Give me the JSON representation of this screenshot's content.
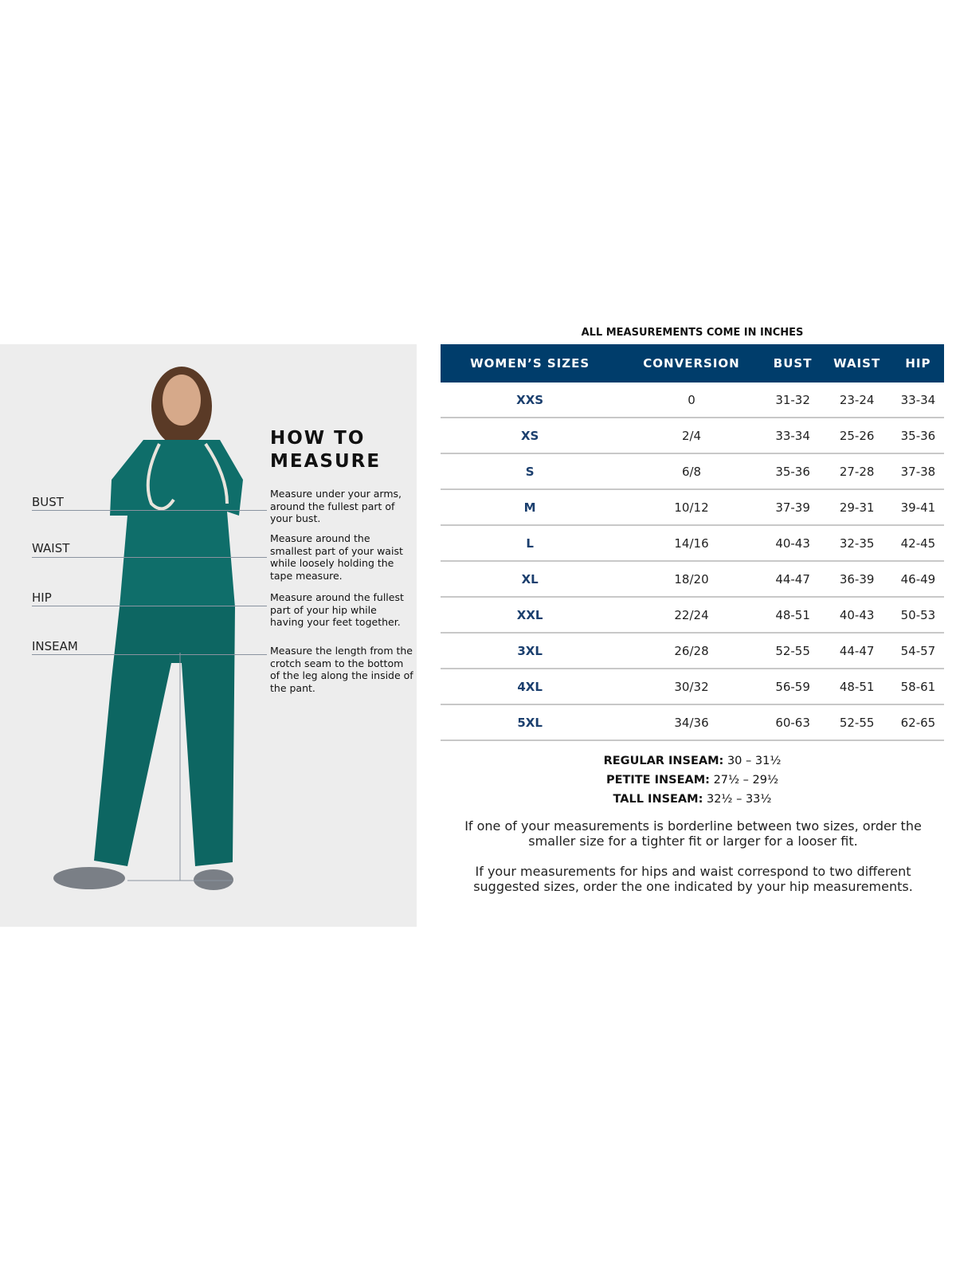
{
  "measure_panel": {
    "title": "HOW TO MEASURE",
    "labels": [
      "BUST",
      "WAIST",
      "HIP",
      "INSEAM"
    ],
    "descriptions": [
      "Measure under your arms, around the fullest part of your bust.",
      "Measure around the smallest part of your waist while loosely holding the tape measure.",
      "Measure around the fullest part of your hip while having your feet together.",
      "Measure the length from the crotch seam to the bottom of the leg along the inside of the pant."
    ],
    "scrub_color": "#0f6e6a"
  },
  "table": {
    "caption": "ALL MEASUREMENTS COME IN INCHES",
    "headers": [
      "WOMEN’S SIZES",
      "CONVERSION",
      "BUST",
      "WAIST",
      "HIP"
    ],
    "header_color": "#003d6b",
    "rows": [
      [
        "XXS",
        "0",
        "31-32",
        "23-24",
        "33-34"
      ],
      [
        "XS",
        "2/4",
        "33-34",
        "25-26",
        "35-36"
      ],
      [
        "S",
        "6/8",
        "35-36",
        "27-28",
        "37-38"
      ],
      [
        "M",
        "10/12",
        "37-39",
        "29-31",
        "39-41"
      ],
      [
        "L",
        "14/16",
        "40-43",
        "32-35",
        "42-45"
      ],
      [
        "XL",
        "18/20",
        "44-47",
        "36-39",
        "46-49"
      ],
      [
        "XXL",
        "22/24",
        "48-51",
        "40-43",
        "50-53"
      ],
      [
        "3XL",
        "26/28",
        "52-55",
        "44-47",
        "54-57"
      ],
      [
        "4XL",
        "30/32",
        "56-59",
        "48-51",
        "58-61"
      ],
      [
        "5XL",
        "34/36",
        "60-63",
        "52-55",
        "62-65"
      ]
    ]
  },
  "inseams": [
    {
      "label": "REGULAR INSEAM:",
      "value": "30  – 31½"
    },
    {
      "label": "PETITE INSEAM:",
      "value": "27½ – 29½"
    },
    {
      "label": "TALL INSEAM:",
      "value": "32½ – 33½"
    }
  ],
  "notes": [
    "If one of your measurements is borderline between two sizes, order the smaller size for a tighter fit or larger for a looser fit.",
    "If your measurements for hips and waist correspond to two different suggested sizes, order the one indicated by your hip measurements."
  ]
}
